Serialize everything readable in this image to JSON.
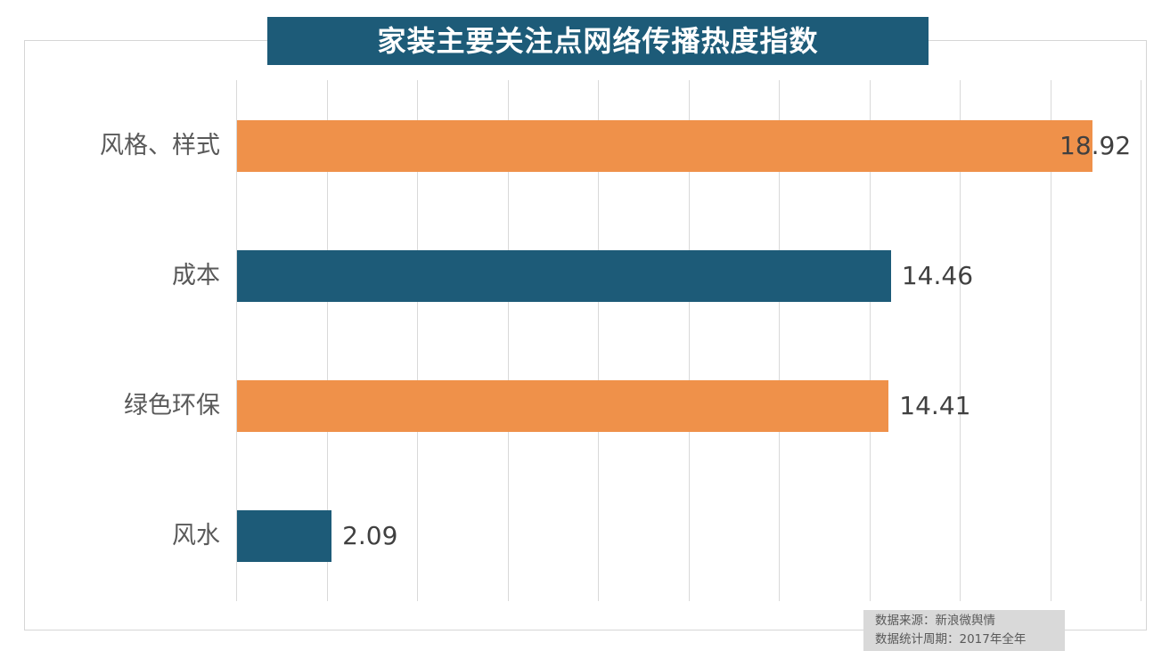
{
  "title": "家装主要关注点网络传播热度指数",
  "colors": {
    "title_bg": "#1d5b78",
    "title_text": "#ffffff",
    "bar_orange": "#ef914a",
    "bar_teal": "#1d5b78",
    "gridline": "#d9d9d9",
    "frame_border": "#d6d6d6",
    "category_text": "#595959",
    "value_text": "#404040",
    "source_bg": "#d9d9d9",
    "source_text": "#595959"
  },
  "source": {
    "line1": "数据来源：新浪微舆情",
    "line2": "数据统计周期：2017年全年"
  },
  "chart_data": {
    "type": "bar",
    "orientation": "horizontal",
    "title": "家装主要关注点网络传播热度指数",
    "categories": [
      "风格、样式",
      "成本",
      "绿色环保",
      "风水"
    ],
    "values": [
      18.92,
      14.46,
      14.41,
      2.09
    ],
    "value_labels": [
      "18.92",
      "14.46",
      "14.41",
      "2.09"
    ],
    "bar_colors": [
      "#ef914a",
      "#1d5b78",
      "#ef914a",
      "#1d5b78"
    ],
    "xlim": [
      0,
      20
    ],
    "gridline_step": 2,
    "grid": true,
    "legend": "none",
    "value_label_position": "outside-end",
    "category_order": "top-to-bottom"
  }
}
